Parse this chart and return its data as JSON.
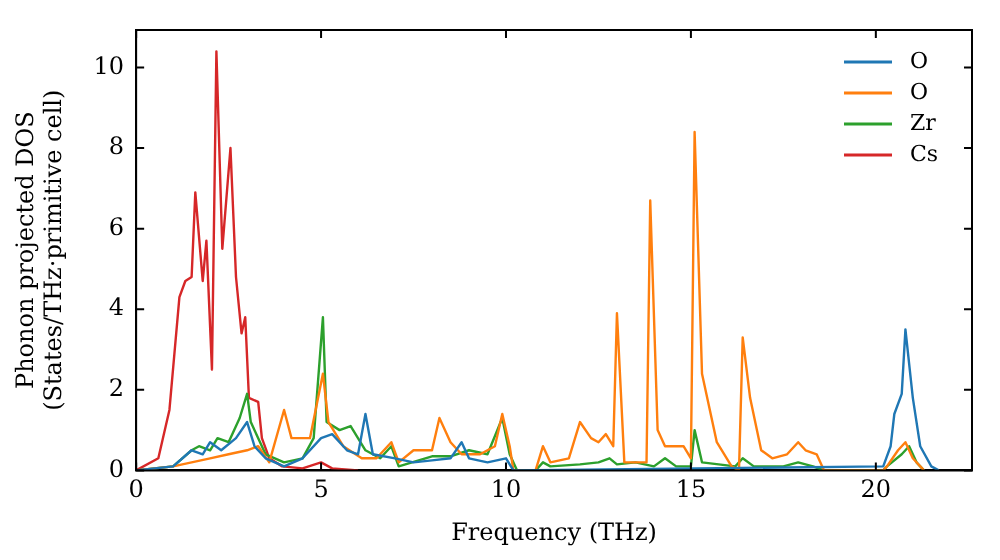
{
  "chart_data": {
    "type": "line",
    "xlabel": "Frequency (THz)",
    "ylabel": "Phonon projected DOS\n(States/THz·primitive cell)",
    "xlim": [
      0,
      22.6
    ],
    "xticks": [
      0,
      5,
      10,
      15,
      20
    ],
    "ylim": [
      0,
      10.93
    ],
    "yticks": [
      0,
      2,
      4,
      6,
      8,
      10
    ],
    "grid": false,
    "legend": "top right",
    "marker": "none",
    "line_style": "solid",
    "series": [
      {
        "name": "O",
        "color": "#1f77b4",
        "x": [
          0,
          1,
          1.5,
          1.8,
          2.0,
          2.3,
          2.7,
          3.0,
          3.2,
          3.5,
          4,
          4.5,
          5,
          5.3,
          5.7,
          6.0,
          6.2,
          6.4,
          7,
          7.5,
          8,
          8.5,
          8.8,
          9,
          9.5,
          10,
          10.2,
          20.2,
          20.4,
          20.5,
          20.7,
          20.8,
          21,
          21.2,
          21.5,
          21.7
        ],
        "values": [
          0,
          0.1,
          0.5,
          0.4,
          0.7,
          0.5,
          0.8,
          1.2,
          0.6,
          0.3,
          0.1,
          0.3,
          0.8,
          0.9,
          0.5,
          0.4,
          1.4,
          0.4,
          0.3,
          0.2,
          0.25,
          0.3,
          0.7,
          0.3,
          0.2,
          0.3,
          0,
          0.1,
          0.6,
          1.4,
          1.9,
          3.5,
          1.8,
          0.6,
          0.1,
          0
        ]
      },
      {
        "name": "O",
        "color": "#ff7f0e",
        "x": [
          0,
          1,
          2,
          2.5,
          3,
          3.3,
          3.6,
          4,
          4.2,
          4.7,
          5.05,
          5.2,
          5.6,
          6.1,
          6.5,
          6.9,
          7.1,
          7.5,
          8,
          8.2,
          8.5,
          8.8,
          9.3,
          9.7,
          9.9,
          10.1,
          10.2,
          10.8,
          11,
          11.2,
          11.7,
          12,
          12.3,
          12.5,
          12.7,
          12.9,
          13.0,
          13.2,
          13.8,
          13.9,
          14.1,
          14.3,
          14.8,
          15.0,
          15.1,
          15.3,
          15.7,
          16.1,
          16.3,
          16.4,
          16.6,
          16.9,
          17.2,
          17.6,
          17.9,
          18.1,
          18.4,
          18.6,
          20.2,
          20.3,
          20.6,
          20.8,
          21,
          21.3
        ],
        "values": [
          0,
          0.1,
          0.3,
          0.4,
          0.5,
          0.6,
          0.2,
          1.5,
          0.8,
          0.8,
          2.4,
          1.2,
          0.6,
          0.3,
          0.3,
          0.7,
          0.2,
          0.5,
          0.5,
          1.3,
          0.7,
          0.4,
          0.4,
          0.6,
          1.4,
          0.6,
          0,
          0,
          0.6,
          0.2,
          0.3,
          1.2,
          0.8,
          0.7,
          0.9,
          0.6,
          3.9,
          0.2,
          0.2,
          6.7,
          1.0,
          0.6,
          0.6,
          0.3,
          8.4,
          2.4,
          0.7,
          0.1,
          0,
          3.3,
          1.8,
          0.5,
          0.3,
          0.4,
          0.7,
          0.5,
          0.4,
          0,
          0,
          0.1,
          0.5,
          0.7,
          0.3,
          0
        ]
      },
      {
        "name": "Zr",
        "color": "#2ca02c",
        "x": [
          0,
          1,
          1.5,
          1.7,
          2,
          2.2,
          2.5,
          2.8,
          3.0,
          3.1,
          3.5,
          4,
          4.5,
          4.8,
          5.05,
          5.15,
          5.5,
          5.8,
          6.2,
          6.6,
          6.9,
          7.1,
          8,
          8.5,
          9,
          9.5,
          9.9,
          10.1,
          10.3,
          10.8,
          11,
          11.2,
          12,
          12.5,
          12.8,
          13,
          13.5,
          14,
          14.3,
          14.6,
          15,
          15.1,
          15.3,
          16.2,
          16.4,
          16.7,
          17.5,
          17.9,
          18.3,
          18.6,
          20.2,
          20.3,
          20.7,
          20.9,
          21.1,
          21.3
        ],
        "values": [
          0,
          0.1,
          0.5,
          0.6,
          0.5,
          0.8,
          0.7,
          1.3,
          1.9,
          1.2,
          0.4,
          0.2,
          0.3,
          0.8,
          3.8,
          1.2,
          1.0,
          1.1,
          0.5,
          0.3,
          0.6,
          0.1,
          0.35,
          0.35,
          0.5,
          0.4,
          1.3,
          0.4,
          0,
          0,
          0.2,
          0.1,
          0.15,
          0.2,
          0.3,
          0.15,
          0.2,
          0.1,
          0.3,
          0.1,
          0.1,
          1.0,
          0.2,
          0.1,
          0.3,
          0.1,
          0.1,
          0.2,
          0.1,
          0,
          0,
          0.1,
          0.4,
          0.6,
          0.2,
          0
        ]
      },
      {
        "name": "Cs",
        "color": "#d62728",
        "x": [
          0,
          0.6,
          0.9,
          1.17,
          1.33,
          1.5,
          1.6,
          1.8,
          1.9,
          2.05,
          2.17,
          2.33,
          2.55,
          2.7,
          2.85,
          2.95,
          3.05,
          3.3,
          3.4,
          3.6,
          3.95,
          4.5,
          5.0,
          5.3,
          6
        ],
        "values": [
          0,
          0.3,
          1.5,
          4.3,
          4.7,
          4.8,
          6.9,
          4.7,
          5.7,
          2.5,
          10.4,
          5.5,
          8.0,
          4.8,
          3.4,
          3.8,
          1.8,
          1.7,
          0.8,
          0.3,
          0.1,
          0.05,
          0.2,
          0.05,
          0
        ]
      }
    ]
  }
}
